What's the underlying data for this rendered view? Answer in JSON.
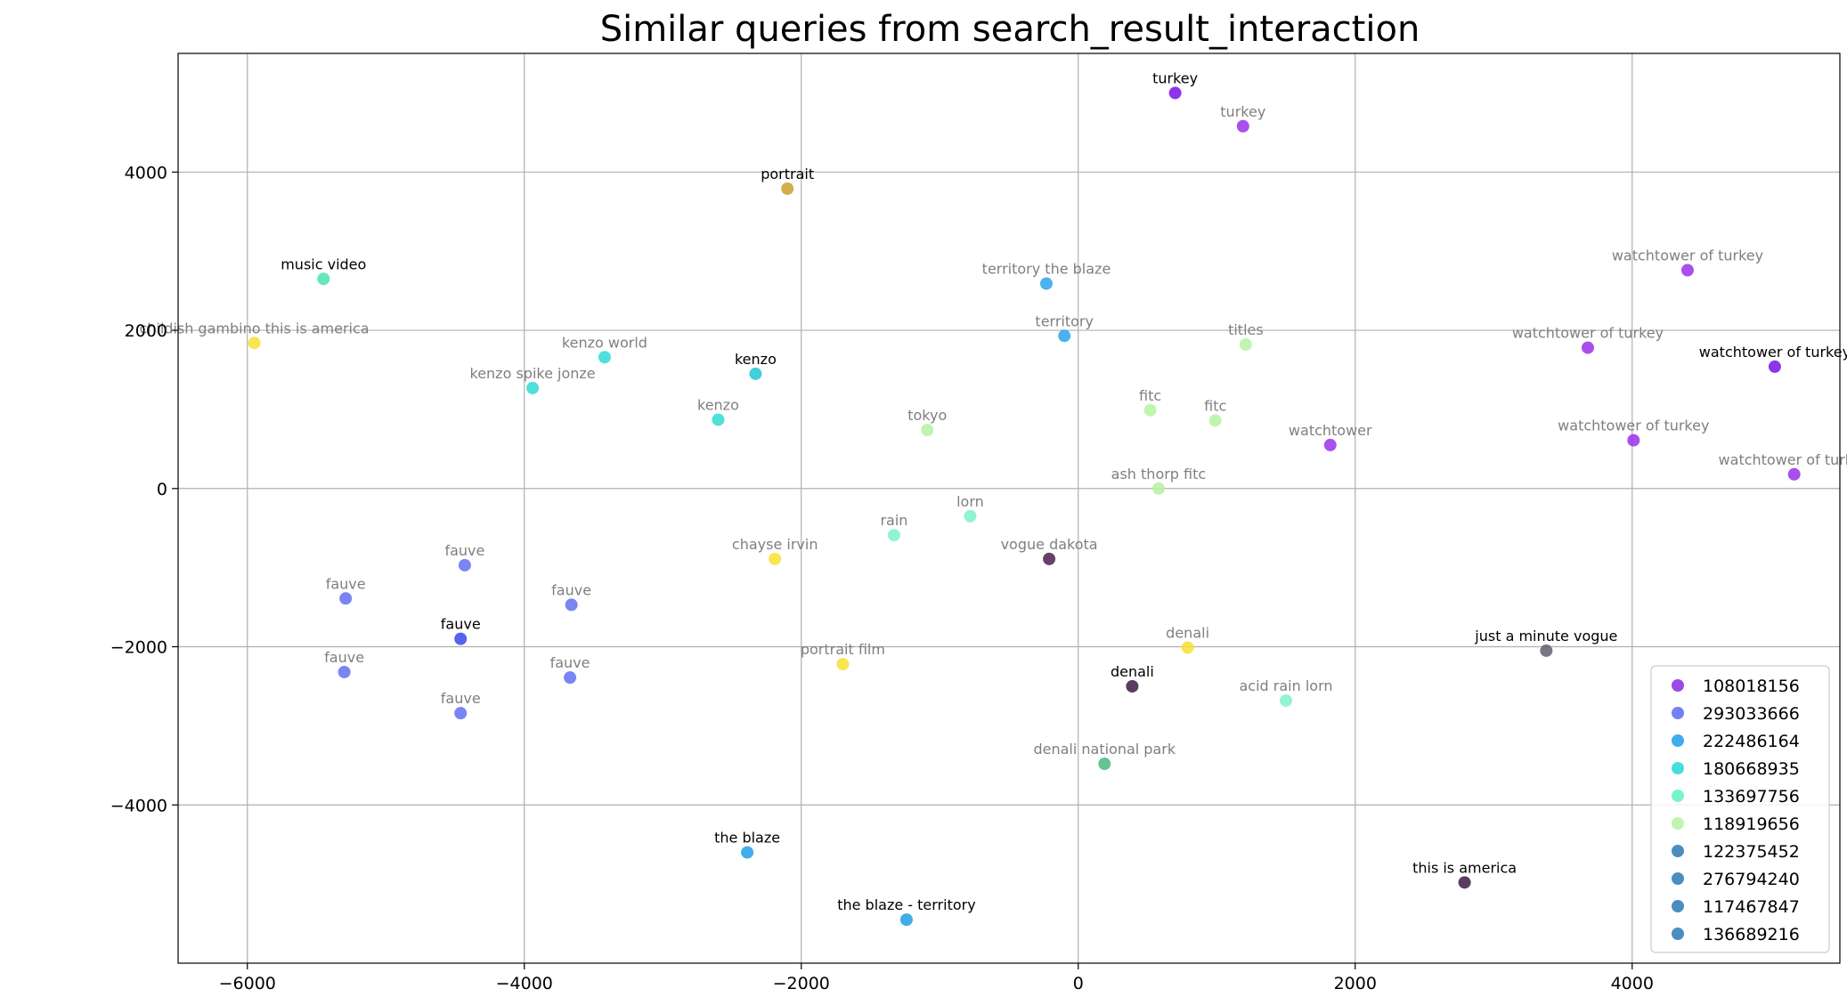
{
  "chart_data": {
    "type": "scatter",
    "title": "Similar queries from search_result_interaction",
    "xlabel": "",
    "ylabel": "",
    "xlim": [
      -6500,
      5500
    ],
    "ylim": [
      -6000,
      5500
    ],
    "xticks": [
      -6000,
      -4000,
      -2000,
      0,
      2000,
      4000
    ],
    "yticks": [
      -4000,
      -2000,
      0,
      2000,
      4000
    ],
    "xtick_labels": [
      "−6000",
      "−4000",
      "−2000",
      "0",
      "2000",
      "4000"
    ],
    "ytick_labels": [
      "−4000",
      "−2000",
      "0",
      "2000",
      "4000"
    ],
    "grid": true,
    "legend_position": "bottom-right",
    "legend": [
      {
        "name": "108018156",
        "color": "#8a2be2"
      },
      {
        "name": "293033666",
        "color": "#5b6cf0"
      },
      {
        "name": "222486164",
        "color": "#1e9ee6"
      },
      {
        "name": "180668935",
        "color": "#28d6d6"
      },
      {
        "name": "133697756",
        "color": "#5ff2c6"
      },
      {
        "name": "118919656",
        "color": "#b6f2a2"
      },
      {
        "name": "122375452",
        "color": "#2a7ab4"
      },
      {
        "name": "276794240",
        "color": "#2a7ab4"
      },
      {
        "name": "117467847",
        "color": "#2a7ab4"
      },
      {
        "name": "136689216",
        "color": "#2a7ab4"
      }
    ],
    "points": [
      {
        "x": 700,
        "y": 5000,
        "label": "turkey",
        "color": "#7a10e8",
        "label_color": "#000000"
      },
      {
        "x": 1190,
        "y": 4580,
        "label": "turkey",
        "color": "#9a30ea",
        "label_color": "#7f7f7f"
      },
      {
        "x": -2100,
        "y": 3790,
        "label": "portrait",
        "color": "#c8a028",
        "label_color": "#000000"
      },
      {
        "x": -5450,
        "y": 2650,
        "label": "music video",
        "color": "#4ce0b0",
        "label_color": "#000000"
      },
      {
        "x": -5950,
        "y": 1840,
        "label": "childish gambino this is america",
        "color": "#f8e030",
        "label_color": "#7f7f7f"
      },
      {
        "x": -3420,
        "y": 1660,
        "label": "kenzo world",
        "color": "#30dad2",
        "label_color": "#7f7f7f"
      },
      {
        "x": -3940,
        "y": 1270,
        "label": "kenzo spike jonze",
        "color": "#30dad2",
        "label_color": "#7f7f7f"
      },
      {
        "x": -2330,
        "y": 1450,
        "label": "kenzo",
        "color": "#20c8d4",
        "label_color": "#000000"
      },
      {
        "x": -2600,
        "y": 870,
        "label": "kenzo",
        "color": "#30dad2",
        "label_color": "#7f7f7f"
      },
      {
        "x": -230,
        "y": 2590,
        "label": "territory the blaze",
        "color": "#28a6ea",
        "label_color": "#7f7f7f"
      },
      {
        "x": -100,
        "y": 1930,
        "label": "territory",
        "color": "#28a6ea",
        "label_color": "#7f7f7f"
      },
      {
        "x": 1210,
        "y": 1820,
        "label": "titles",
        "color": "#b6f2a2",
        "label_color": "#7f7f7f"
      },
      {
        "x": 520,
        "y": 990,
        "label": "fitc",
        "color": "#b6f2a2",
        "label_color": "#7f7f7f"
      },
      {
        "x": 990,
        "y": 860,
        "label": "fitc",
        "color": "#b6f2a2",
        "label_color": "#7f7f7f"
      },
      {
        "x": -1090,
        "y": 740,
        "label": "tokyo",
        "color": "#b6f2a2",
        "label_color": "#7f7f7f"
      },
      {
        "x": 1820,
        "y": 550,
        "label": "watchtower",
        "color": "#9a30ea",
        "label_color": "#7f7f7f"
      },
      {
        "x": 4400,
        "y": 2760,
        "label": "watchtower of turkey",
        "color": "#9a30ea",
        "label_color": "#7f7f7f"
      },
      {
        "x": 3680,
        "y": 1780,
        "label": "watchtower of turkey",
        "color": "#9a30ea",
        "label_color": "#7f7f7f"
      },
      {
        "x": 5030,
        "y": 1540,
        "label": "watchtower of turkey",
        "color": "#7a10e8",
        "label_color": "#000000"
      },
      {
        "x": 4010,
        "y": 610,
        "label": "watchtower of turkey",
        "color": "#9a30ea",
        "label_color": "#7f7f7f"
      },
      {
        "x": 5170,
        "y": 180,
        "label": "watchtower of turkey",
        "color": "#9a30ea",
        "label_color": "#7f7f7f"
      },
      {
        "x": 580,
        "y": 0,
        "label": "ash thorp fitc",
        "color": "#b6f2a2",
        "label_color": "#7f7f7f"
      },
      {
        "x": -780,
        "y": -350,
        "label": "lorn",
        "color": "#7ff2c6",
        "label_color": "#7f7f7f"
      },
      {
        "x": -1330,
        "y": -590,
        "label": "rain",
        "color": "#7ff2c6",
        "label_color": "#7f7f7f"
      },
      {
        "x": -2190,
        "y": -890,
        "label": "chayse irvin",
        "color": "#f8e030",
        "label_color": "#7f7f7f"
      },
      {
        "x": -210,
        "y": -890,
        "label": "vogue dakota",
        "color": "#4a2050",
        "label_color": "#7f7f7f"
      },
      {
        "x": -4430,
        "y": -970,
        "label": "fauve",
        "color": "#6070f0",
        "label_color": "#7f7f7f"
      },
      {
        "x": -5290,
        "y": -1390,
        "label": "fauve",
        "color": "#6070f0",
        "label_color": "#7f7f7f"
      },
      {
        "x": -3660,
        "y": -1470,
        "label": "fauve",
        "color": "#6070f0",
        "label_color": "#7f7f7f"
      },
      {
        "x": -4460,
        "y": -1900,
        "label": "fauve",
        "color": "#3848e8",
        "label_color": "#000000"
      },
      {
        "x": -5300,
        "y": -2320,
        "label": "fauve",
        "color": "#6070f0",
        "label_color": "#7f7f7f"
      },
      {
        "x": -3670,
        "y": -2390,
        "label": "fauve",
        "color": "#6070f0",
        "label_color": "#7f7f7f"
      },
      {
        "x": -4460,
        "y": -2840,
        "label": "fauve",
        "color": "#6070f0",
        "label_color": "#7f7f7f"
      },
      {
        "x": 790,
        "y": -2010,
        "label": "denali",
        "color": "#f8e030",
        "label_color": "#7f7f7f"
      },
      {
        "x": -1700,
        "y": -2220,
        "label": "portrait film",
        "color": "#f8e030",
        "label_color": "#7f7f7f"
      },
      {
        "x": 390,
        "y": -2500,
        "label": "denali",
        "color": "#3c1a44",
        "label_color": "#000000"
      },
      {
        "x": 1500,
        "y": -2680,
        "label": "acid rain lorn",
        "color": "#7ff2c6",
        "label_color": "#7f7f7f"
      },
      {
        "x": 3380,
        "y": -2050,
        "label": "just a minute vogue",
        "color": "#606070",
        "label_color": "#000000"
      },
      {
        "x": 190,
        "y": -3480,
        "label": "denali national park",
        "color": "#4ab880",
        "label_color": "#7f7f7f"
      },
      {
        "x": -2390,
        "y": -4600,
        "label": "the blaze",
        "color": "#1e9ee6",
        "label_color": "#000000"
      },
      {
        "x": -1240,
        "y": -5450,
        "label": "the blaze - territory",
        "color": "#1e9ee6",
        "label_color": "#000000"
      },
      {
        "x": 2790,
        "y": -4980,
        "label": "this is america",
        "color": "#3c1a44",
        "label_color": "#000000"
      }
    ]
  }
}
